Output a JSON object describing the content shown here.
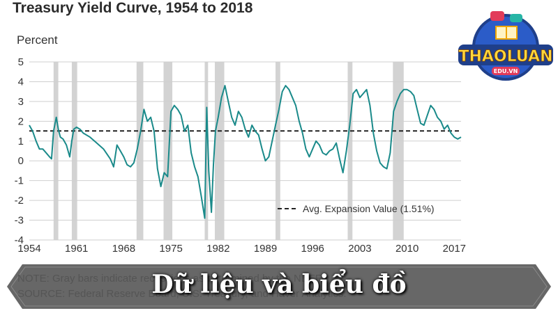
{
  "title": "Treasury Yield Curve, 1954 to 2018",
  "ylabel": "Percent",
  "note": "NOTE: Gray bars indicate recessions as determined by the NBER.",
  "source": "SOURCE: Federal Reserve Board, U.S. Treasury, and Haver Analytics.",
  "caption": "Dữ liệu và biểu đồ",
  "logo": {
    "text": "THAOLUAN",
    "subtext": "EDU.VN"
  },
  "colors": {
    "line": "#1a8a8a",
    "recession": "#d3d3d3",
    "avg": "#222222"
  },
  "chart_data": {
    "type": "line",
    "title": "Treasury Yield Curve, 1954 to 2018",
    "ylabel": "Percent",
    "xlabel": "",
    "xlim": [
      1954,
      2018
    ],
    "ylim": [
      -4,
      5
    ],
    "x_ticks": [
      "1954",
      "1961",
      "1968",
      "1975",
      "1982",
      "1989",
      "1996",
      "2003",
      "2010",
      "2017"
    ],
    "y_ticks": [
      "5",
      "4",
      "3",
      "2",
      "1",
      "0",
      "-1",
      "-2",
      "-3",
      "-4"
    ],
    "grid": "horizontal",
    "legend_placement": "bottom-right",
    "average": {
      "label": "Avg. Expansion Value (1.51%)",
      "value": 1.51
    },
    "recessions": [
      [
        1957.6,
        1958.3
      ],
      [
        1960.3,
        1961.1
      ],
      [
        1969.9,
        1970.9
      ],
      [
        1973.9,
        1975.2
      ],
      [
        1980.0,
        1980.5
      ],
      [
        1981.5,
        1982.9
      ],
      [
        1990.5,
        1991.2
      ],
      [
        2001.2,
        2001.9
      ],
      [
        2007.9,
        2009.5
      ]
    ],
    "series": [
      {
        "x": [
          1954.0,
          1954.5,
          1955.0,
          1955.5,
          1956.0,
          1956.5,
          1957.0,
          1957.3,
          1957.6,
          1958.0,
          1958.3,
          1958.6,
          1959.0,
          1959.5,
          1960.0,
          1960.3,
          1960.6,
          1961.0,
          1961.5,
          1962.0,
          1963.0,
          1964.0,
          1965.0,
          1966.0,
          1966.5,
          1967.0,
          1967.5,
          1968.0,
          1968.5,
          1969.0,
          1969.5,
          1970.0,
          1970.5,
          1971.0,
          1971.5,
          1972.0,
          1972.5,
          1973.0,
          1973.5,
          1974.0,
          1974.5,
          1975.0,
          1975.5,
          1976.0,
          1976.5,
          1977.0,
          1977.5,
          1978.0,
          1978.5,
          1979.0,
          1979.5,
          1980.0,
          1980.3,
          1980.6,
          1981.0,
          1981.3,
          1981.6,
          1982.0,
          1982.5,
          1983.0,
          1983.5,
          1984.0,
          1984.5,
          1985.0,
          1985.5,
          1986.0,
          1986.5,
          1987.0,
          1987.5,
          1988.0,
          1988.5,
          1989.0,
          1989.5,
          1990.0,
          1990.5,
          1991.0,
          1991.5,
          1992.0,
          1992.5,
          1993.0,
          1993.5,
          1994.0,
          1994.5,
          1995.0,
          1995.5,
          1996.0,
          1996.5,
          1997.0,
          1997.5,
          1998.0,
          1998.5,
          1999.0,
          1999.5,
          2000.0,
          2000.5,
          2001.0,
          2001.5,
          2002.0,
          2002.5,
          2003.0,
          2003.5,
          2004.0,
          2004.5,
          2005.0,
          2005.5,
          2006.0,
          2006.5,
          2007.0,
          2007.5,
          2008.0,
          2008.5,
          2009.0,
          2009.5,
          2010.0,
          2010.5,
          2011.0,
          2011.5,
          2012.0,
          2012.5,
          2013.0,
          2013.5,
          2014.0,
          2014.5,
          2015.0,
          2015.5,
          2016.0,
          2016.5,
          2017.0,
          2017.5,
          2018.0
        ],
        "values": [
          1.8,
          1.5,
          1.0,
          0.6,
          0.6,
          0.4,
          0.2,
          0.1,
          1.5,
          2.2,
          1.6,
          1.2,
          1.1,
          0.8,
          0.2,
          1.0,
          1.6,
          1.7,
          1.6,
          1.4,
          1.2,
          0.9,
          0.6,
          0.1,
          -0.3,
          0.8,
          0.5,
          0.2,
          -0.2,
          -0.3,
          -0.1,
          0.6,
          1.5,
          2.6,
          2.0,
          2.2,
          1.5,
          -0.4,
          -1.3,
          -0.6,
          -0.8,
          2.5,
          2.8,
          2.6,
          2.3,
          1.5,
          1.8,
          0.4,
          -0.3,
          -0.8,
          -1.8,
          -2.9,
          2.7,
          -0.5,
          -2.6,
          -0.2,
          1.5,
          2.2,
          3.2,
          3.8,
          3.0,
          2.2,
          1.8,
          2.5,
          2.2,
          1.6,
          1.2,
          1.8,
          1.5,
          1.3,
          0.6,
          0.0,
          0.2,
          1.0,
          1.8,
          2.6,
          3.5,
          3.8,
          3.6,
          3.2,
          2.8,
          2.0,
          1.4,
          0.6,
          0.2,
          0.6,
          1.0,
          0.8,
          0.4,
          0.3,
          0.5,
          0.6,
          0.9,
          0.1,
          -0.6,
          0.5,
          1.8,
          3.4,
          3.6,
          3.2,
          3.4,
          3.6,
          2.8,
          1.4,
          0.5,
          -0.1,
          -0.3,
          -0.4,
          0.4,
          2.5,
          3.0,
          3.4,
          3.6,
          3.6,
          3.5,
          3.3,
          2.6,
          1.9,
          1.8,
          2.3,
          2.8,
          2.6,
          2.2,
          2.0,
          1.6,
          1.8,
          1.4,
          1.2,
          1.1,
          1.2
        ]
      }
    ]
  }
}
